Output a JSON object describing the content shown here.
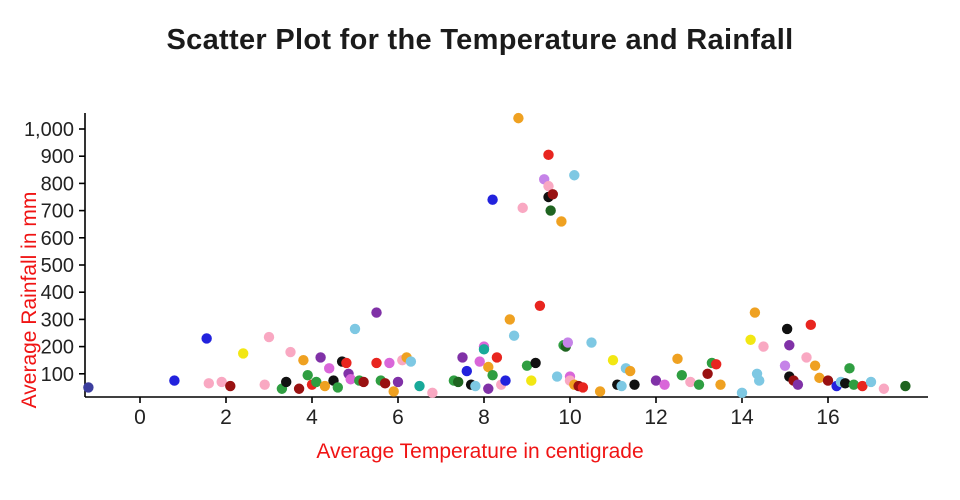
{
  "chart_data": {
    "type": "scatter",
    "title": "Scatter Plot for the Temperature and Rainfall",
    "xlabel": "Average Temperature in centigrade",
    "ylabel": "Average Rainfall in mm",
    "x_ticks": [
      0,
      2,
      4,
      6,
      8,
      10,
      12,
      14,
      16
    ],
    "y_ticks": [
      100,
      200,
      300,
      400,
      500,
      600,
      700,
      800,
      900,
      1000
    ],
    "y_tick_labels": [
      "100",
      "200",
      "300",
      "400",
      "500",
      "600",
      "700",
      "800",
      "900",
      "1,000"
    ],
    "xlim": [
      -1.3,
      18.3
    ],
    "ylim": [
      0,
      1080
    ],
    "grid": false,
    "legend": "none",
    "colors": {
      "navy": "#3c3e9e",
      "blue": "#2222dd",
      "skyblue": "#7ec8e3",
      "teal": "#18a999",
      "green": "#2f9e41",
      "darkgreen": "#1f6420",
      "yellow": "#f2e713",
      "orange": "#efa121",
      "red": "#e8251f",
      "darkred": "#991111",
      "pink": "#f9a8c2",
      "magenta": "#d966d9",
      "violet": "#c583e8",
      "purple": "#8031a7",
      "black": "#111111"
    },
    "points": [
      [
        -1.2,
        50,
        "navy"
      ],
      [
        0.8,
        75,
        "blue"
      ],
      [
        1.55,
        230,
        "blue"
      ],
      [
        1.6,
        65,
        "pink"
      ],
      [
        1.9,
        70,
        "pink"
      ],
      [
        2.1,
        55,
        "darkred"
      ],
      [
        2.4,
        175,
        "yellow"
      ],
      [
        2.9,
        60,
        "pink"
      ],
      [
        3.0,
        235,
        "pink"
      ],
      [
        3.3,
        45,
        "green"
      ],
      [
        3.4,
        70,
        "black"
      ],
      [
        3.5,
        180,
        "pink"
      ],
      [
        3.7,
        45,
        "darkred"
      ],
      [
        3.8,
        150,
        "orange"
      ],
      [
        3.9,
        95,
        "green"
      ],
      [
        4.0,
        60,
        "red"
      ],
      [
        4.1,
        70,
        "green"
      ],
      [
        4.2,
        160,
        "purple"
      ],
      [
        4.3,
        55,
        "orange"
      ],
      [
        4.4,
        120,
        "magenta"
      ],
      [
        4.5,
        75,
        "black"
      ],
      [
        4.6,
        50,
        "green"
      ],
      [
        4.7,
        145,
        "black"
      ],
      [
        4.8,
        140,
        "red"
      ],
      [
        4.85,
        100,
        "purple"
      ],
      [
        4.9,
        80,
        "magenta"
      ],
      [
        5.0,
        265,
        "skyblue"
      ],
      [
        5.1,
        75,
        "green"
      ],
      [
        5.2,
        70,
        "darkred"
      ],
      [
        5.5,
        325,
        "purple"
      ],
      [
        5.5,
        140,
        "red"
      ],
      [
        5.6,
        75,
        "green"
      ],
      [
        5.7,
        65,
        "darkred"
      ],
      [
        5.8,
        140,
        "magenta"
      ],
      [
        5.9,
        35,
        "orange"
      ],
      [
        6.0,
        70,
        "purple"
      ],
      [
        6.1,
        150,
        "pink"
      ],
      [
        6.2,
        160,
        "orange"
      ],
      [
        6.3,
        145,
        "skyblue"
      ],
      [
        6.5,
        55,
        "teal"
      ],
      [
        6.8,
        30,
        "pink"
      ],
      [
        7.3,
        75,
        "green"
      ],
      [
        7.4,
        70,
        "darkgreen"
      ],
      [
        7.5,
        160,
        "purple"
      ],
      [
        7.6,
        110,
        "blue"
      ],
      [
        7.7,
        60,
        "black"
      ],
      [
        7.8,
        55,
        "skyblue"
      ],
      [
        7.9,
        145,
        "magenta"
      ],
      [
        8.0,
        200,
        "magenta"
      ],
      [
        8.0,
        190,
        "teal"
      ],
      [
        8.1,
        125,
        "orange"
      ],
      [
        8.1,
        45,
        "purple"
      ],
      [
        8.2,
        740,
        "blue"
      ],
      [
        8.2,
        95,
        "green"
      ],
      [
        8.3,
        160,
        "red"
      ],
      [
        8.4,
        60,
        "pink"
      ],
      [
        8.5,
        75,
        "blue"
      ],
      [
        8.6,
        300,
        "orange"
      ],
      [
        8.7,
        240,
        "skyblue"
      ],
      [
        8.8,
        1040,
        "orange"
      ],
      [
        8.9,
        710,
        "pink"
      ],
      [
        9.0,
        130,
        "green"
      ],
      [
        9.1,
        75,
        "yellow"
      ],
      [
        9.2,
        140,
        "black"
      ],
      [
        9.3,
        350,
        "red"
      ],
      [
        9.4,
        815,
        "violet"
      ],
      [
        9.5,
        905,
        "red"
      ],
      [
        9.5,
        790,
        "pink"
      ],
      [
        9.5,
        750,
        "black"
      ],
      [
        9.55,
        700,
        "darkgreen"
      ],
      [
        9.6,
        760,
        "darkred"
      ],
      [
        9.7,
        90,
        "skyblue"
      ],
      [
        9.8,
        660,
        "orange"
      ],
      [
        9.85,
        205,
        "green"
      ],
      [
        9.9,
        200,
        "darkgreen"
      ],
      [
        9.95,
        215,
        "violet"
      ],
      [
        10.0,
        90,
        "magenta"
      ],
      [
        10.0,
        75,
        "pink"
      ],
      [
        10.1,
        830,
        "skyblue"
      ],
      [
        10.1,
        60,
        "orange"
      ],
      [
        10.2,
        55,
        "darkred"
      ],
      [
        10.3,
        50,
        "red"
      ],
      [
        10.5,
        215,
        "skyblue"
      ],
      [
        10.7,
        35,
        "orange"
      ],
      [
        11.0,
        150,
        "yellow"
      ],
      [
        11.1,
        60,
        "black"
      ],
      [
        11.2,
        55,
        "skyblue"
      ],
      [
        11.3,
        120,
        "skyblue"
      ],
      [
        11.4,
        110,
        "orange"
      ],
      [
        11.5,
        60,
        "black"
      ],
      [
        12.0,
        75,
        "purple"
      ],
      [
        12.2,
        60,
        "magenta"
      ],
      [
        12.5,
        155,
        "orange"
      ],
      [
        12.6,
        95,
        "green"
      ],
      [
        12.8,
        70,
        "pink"
      ],
      [
        13.0,
        60,
        "green"
      ],
      [
        13.2,
        100,
        "darkred"
      ],
      [
        13.3,
        140,
        "green"
      ],
      [
        13.4,
        135,
        "red"
      ],
      [
        13.5,
        60,
        "orange"
      ],
      [
        14.0,
        30,
        "skyblue"
      ],
      [
        14.2,
        225,
        "yellow"
      ],
      [
        14.3,
        325,
        "orange"
      ],
      [
        14.35,
        100,
        "skyblue"
      ],
      [
        14.4,
        75,
        "skyblue"
      ],
      [
        14.5,
        200,
        "pink"
      ],
      [
        15.0,
        130,
        "violet"
      ],
      [
        15.05,
        265,
        "black"
      ],
      [
        15.1,
        205,
        "purple"
      ],
      [
        15.1,
        90,
        "black"
      ],
      [
        15.2,
        75,
        "darkred"
      ],
      [
        15.3,
        60,
        "purple"
      ],
      [
        15.5,
        160,
        "pink"
      ],
      [
        15.6,
        280,
        "red"
      ],
      [
        15.7,
        130,
        "orange"
      ],
      [
        15.8,
        85,
        "orange"
      ],
      [
        16.0,
        75,
        "darkred"
      ],
      [
        16.2,
        55,
        "blue"
      ],
      [
        16.3,
        70,
        "skyblue"
      ],
      [
        16.4,
        65,
        "black"
      ],
      [
        16.5,
        120,
        "green"
      ],
      [
        16.6,
        60,
        "green"
      ],
      [
        16.8,
        55,
        "red"
      ],
      [
        17.0,
        70,
        "skyblue"
      ],
      [
        17.3,
        45,
        "pink"
      ],
      [
        17.8,
        55,
        "darkgreen"
      ]
    ]
  },
  "style_colors": {
    "axis_label": "#f01414",
    "tick_label": "#222222",
    "title": "#1b1b1b",
    "axis_line": "#000000"
  }
}
